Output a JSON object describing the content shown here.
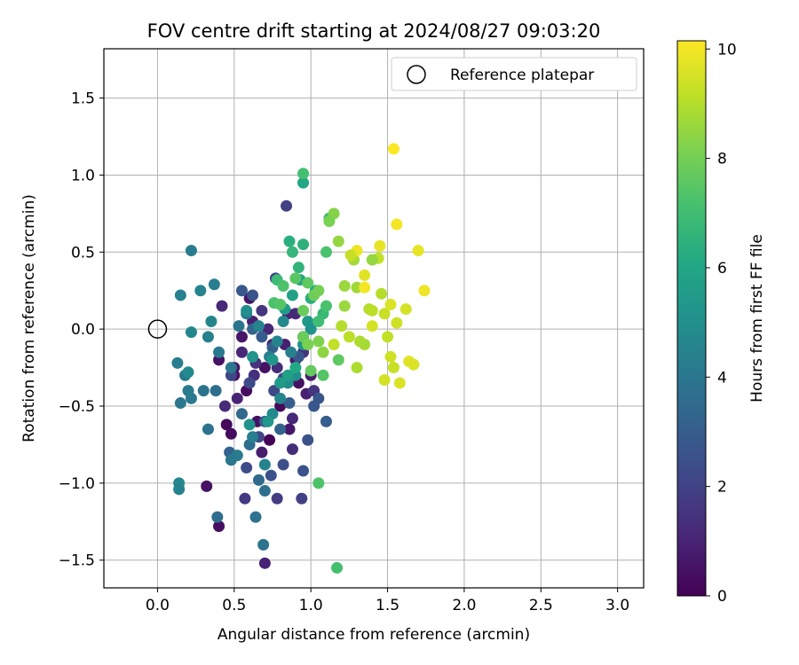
{
  "chart_data": {
    "type": "scatter",
    "title": "FOV centre drift starting at 2024/08/27 09:03:20",
    "xlabel": "Angular distance from reference (arcmin)",
    "ylabel": "Rotation from reference (arcmin)",
    "xlim": [
      -0.35,
      3.17
    ],
    "ylim": [
      -1.68,
      1.82
    ],
    "xticks": [
      "0.0",
      "0.5",
      "1.0",
      "1.5",
      "2.0",
      "2.5",
      "3.0"
    ],
    "yticks": [
      "1.5",
      "1.0",
      "0.5",
      "0.0",
      "−0.5",
      "−1.0",
      "−1.5"
    ],
    "xtick_values": [
      0,
      0.5,
      1.0,
      1.5,
      2.0,
      2.5,
      3.0
    ],
    "ytick_values": [
      1.5,
      1.0,
      0.5,
      0.0,
      -0.5,
      -1.0,
      -1.5
    ],
    "grid": true,
    "legend": {
      "placement": "top-right",
      "entries": [
        "Reference platepar"
      ]
    },
    "colorbar": {
      "label": "Hours from first FF file",
      "range": [
        0,
        10.15
      ],
      "ticks": [
        "0",
        "2",
        "4",
        "6",
        "8",
        "10"
      ],
      "tick_values": [
        0,
        2,
        4,
        6,
        8,
        10
      ],
      "colormap": "viridis"
    },
    "reference_point": {
      "x": 0.0,
      "y": 0.0,
      "label": "Reference platepar"
    },
    "points": [
      [
        0.5,
        -0.3,
        0.4
      ],
      [
        0.55,
        -0.05,
        0.6
      ],
      [
        0.58,
        -0.4,
        0.3
      ],
      [
        0.62,
        0.05,
        0.9
      ],
      [
        0.7,
        -0.25,
        0.5
      ],
      [
        0.75,
        -0.1,
        0.8
      ],
      [
        0.8,
        -0.5,
        0.2
      ],
      [
        0.85,
        0.1,
        1.0
      ],
      [
        0.9,
        -0.2,
        0.7
      ],
      [
        0.95,
        -0.05,
        0.3
      ],
      [
        0.97,
        -0.42,
        0.9
      ],
      [
        0.65,
        -0.6,
        0.4
      ],
      [
        0.45,
        -0.62,
        0.2
      ],
      [
        0.48,
        -0.68,
        0.3
      ],
      [
        0.4,
        -0.2,
        0.5
      ],
      [
        0.42,
        0.15,
        1.2
      ],
      [
        0.6,
        0.2,
        0.6
      ],
      [
        0.68,
        -0.8,
        0.8
      ],
      [
        0.73,
        -0.72,
        0.1
      ],
      [
        0.86,
        -0.65,
        0.6
      ],
      [
        0.32,
        -1.02,
        0.5
      ],
      [
        0.4,
        -1.28,
        0.4
      ],
      [
        0.7,
        -1.52,
        1.0
      ],
      [
        0.88,
        -0.58,
        1.1
      ],
      [
        0.92,
        -0.35,
        0.4
      ],
      [
        1.0,
        -0.3,
        0.8
      ],
      [
        0.55,
        -0.15,
        1.1
      ],
      [
        0.78,
        -0.25,
        1.3
      ],
      [
        0.83,
        -0.1,
        0.9
      ],
      [
        0.6,
        -0.35,
        0.7
      ],
      [
        0.52,
        -0.45,
        1.0
      ],
      [
        0.44,
        -0.5,
        1.2
      ],
      [
        0.5,
        -0.25,
        0.6
      ],
      [
        0.63,
        -0.3,
        1.4
      ],
      [
        0.72,
        0.0,
        1.1
      ],
      [
        0.9,
        0.1,
        1.2
      ],
      [
        0.95,
        -0.15,
        1.5
      ],
      [
        1.02,
        -0.4,
        1.6
      ],
      [
        0.88,
        -0.78,
        1.3
      ],
      [
        0.57,
        -1.1,
        1.7
      ],
      [
        0.78,
        -1.1,
        1.8
      ],
      [
        0.94,
        -1.1,
        1.9
      ],
      [
        0.84,
        0.8,
        1.9
      ],
      [
        0.68,
        0.12,
        1.6
      ],
      [
        0.64,
        -0.22,
        1.5
      ],
      [
        0.77,
        0.33,
        2.0
      ],
      [
        0.76,
        -0.4,
        2.2
      ],
      [
        0.82,
        -0.32,
        2.4
      ],
      [
        0.58,
        -0.9,
        2.3
      ],
      [
        0.66,
        -0.7,
        2.1
      ],
      [
        0.74,
        -0.95,
        2.5
      ],
      [
        0.82,
        -0.88,
        2.4
      ],
      [
        0.95,
        -0.92,
        2.6
      ],
      [
        0.98,
        -0.72,
        2.5
      ],
      [
        1.02,
        -0.5,
        2.8
      ],
      [
        1.05,
        -0.45,
        2.7
      ],
      [
        1.1,
        -0.6,
        3.0
      ],
      [
        0.6,
        -0.35,
        2.3
      ],
      [
        0.55,
        0.25,
        2.8
      ],
      [
        0.62,
        0.22,
        2.6
      ],
      [
        0.48,
        -0.3,
        2.2
      ],
      [
        0.7,
        -0.6,
        2.9
      ],
      [
        0.8,
        -0.65,
        3.2
      ],
      [
        0.86,
        -0.48,
        3.0
      ],
      [
        0.92,
        -0.18,
        2.7
      ],
      [
        0.68,
        -0.05,
        2.9
      ],
      [
        0.75,
        -0.12,
        3.1
      ],
      [
        0.62,
        0.0,
        3.3
      ],
      [
        0.55,
        -0.55,
        3.4
      ],
      [
        0.47,
        -0.8,
        3.2
      ],
      [
        0.6,
        -0.75,
        3.6
      ],
      [
        0.66,
        -0.98,
        3.5
      ],
      [
        0.64,
        -1.22,
        3.8
      ],
      [
        0.7,
        -1.05,
        3.7
      ],
      [
        0.69,
        -1.4,
        3.9
      ],
      [
        0.39,
        -1.22,
        3.6
      ],
      [
        0.33,
        -0.65,
        3.8
      ],
      [
        0.38,
        -0.4,
        3.7
      ],
      [
        0.3,
        -0.4,
        3.9
      ],
      [
        0.22,
        -0.45,
        4.1
      ],
      [
        0.2,
        -0.4,
        4.2
      ],
      [
        0.15,
        -0.48,
        4.0
      ],
      [
        0.13,
        -0.22,
        4.3
      ],
      [
        0.18,
        -0.3,
        4.1
      ],
      [
        0.15,
        0.22,
        4.4
      ],
      [
        0.22,
        0.51,
        4.2
      ],
      [
        0.28,
        0.25,
        4.5
      ],
      [
        0.37,
        0.29,
        4.3
      ],
      [
        0.35,
        0.05,
        4.6
      ],
      [
        0.33,
        -0.05,
        4.4
      ],
      [
        0.4,
        -0.15,
        4.1
      ],
      [
        0.48,
        -0.25,
        4.0
      ],
      [
        0.53,
        0.02,
        3.9
      ],
      [
        0.58,
        0.1,
        4.2
      ],
      [
        0.66,
        0.02,
        4.5
      ],
      [
        0.73,
        -0.18,
        4.3
      ],
      [
        0.78,
        -0.08,
        4.6
      ],
      [
        0.82,
        0.05,
        4.7
      ],
      [
        0.87,
        -0.15,
        4.4
      ],
      [
        0.52,
        -0.82,
        4.2
      ],
      [
        0.48,
        -0.85,
        4.0
      ],
      [
        0.62,
        -0.7,
        4.3
      ],
      [
        0.7,
        -0.88,
        4.5
      ],
      [
        0.75,
        -0.55,
        4.8
      ],
      [
        0.8,
        -0.45,
        4.6
      ],
      [
        0.85,
        -0.35,
        4.9
      ],
      [
        0.9,
        -0.3,
        5.0
      ],
      [
        0.95,
        -0.1,
        5.2
      ],
      [
        0.98,
        0.05,
        5.4
      ],
      [
        1.0,
        0.0,
        5.1
      ],
      [
        0.14,
        -1.0,
        4.7
      ],
      [
        0.14,
        -1.04,
        4.5
      ],
      [
        0.2,
        -0.28,
        4.8
      ],
      [
        0.22,
        -0.02,
        4.6
      ],
      [
        0.58,
        0.12,
        5.0
      ],
      [
        0.75,
        -0.2,
        5.3
      ],
      [
        0.8,
        -0.35,
        5.5
      ],
      [
        0.62,
        -0.18,
        5.2
      ],
      [
        0.72,
        -0.6,
        5.4
      ],
      [
        0.6,
        -0.62,
        5.1
      ],
      [
        0.83,
        0.13,
        5.6
      ],
      [
        0.88,
        0.22,
        5.8
      ],
      [
        0.93,
        0.32,
        5.9
      ],
      [
        0.85,
        -0.3,
        5.7
      ],
      [
        0.95,
        0.95,
        6.0
      ],
      [
        0.9,
        -0.25,
        6.1
      ],
      [
        1.0,
        0.2,
        6.3
      ],
      [
        0.95,
        0.55,
        6.5
      ],
      [
        0.88,
        0.5,
        6.7
      ],
      [
        0.86,
        0.57,
        6.4
      ],
      [
        0.92,
        0.4,
        6.6
      ],
      [
        1.03,
        0.25,
        6.2
      ],
      [
        1.08,
        0.1,
        6.8
      ],
      [
        1.12,
        0.72,
        7.0
      ],
      [
        1.1,
        0.5,
        7.2
      ],
      [
        0.95,
        1.01,
        7.1
      ],
      [
        0.78,
        0.32,
        6.9
      ],
      [
        0.82,
        0.28,
        7.3
      ],
      [
        0.76,
        0.17,
        7.2
      ],
      [
        0.8,
        0.16,
        7.4
      ],
      [
        0.9,
        0.33,
        7.5
      ],
      [
        0.98,
        0.3,
        7.6
      ],
      [
        1.05,
        0.05,
        7.0
      ],
      [
        1.1,
        0.15,
        7.2
      ],
      [
        1.08,
        -0.3,
        7.4
      ],
      [
        1.05,
        -1.0,
        7.3
      ],
      [
        1.17,
        -1.55,
        7.1
      ],
      [
        1.18,
        -0.2,
        7.6
      ],
      [
        1.0,
        -0.27,
        7.7
      ],
      [
        0.95,
        0.12,
        7.8
      ],
      [
        1.02,
        0.22,
        7.9
      ],
      [
        1.05,
        0.25,
        8.0
      ],
      [
        0.95,
        -0.05,
        7.8
      ],
      [
        0.98,
        -0.1,
        8.1
      ],
      [
        1.05,
        -0.08,
        8.2
      ],
      [
        1.15,
        0.75,
        8.3
      ],
      [
        1.18,
        0.57,
        8.5
      ],
      [
        1.22,
        0.15,
        8.6
      ],
      [
        1.28,
        0.45,
        8.8
      ],
      [
        1.3,
        0.27,
        8.7
      ],
      [
        1.32,
        -0.08,
        8.9
      ],
      [
        1.35,
        -0.1,
        8.8
      ],
      [
        1.38,
        0.13,
        9.0
      ],
      [
        1.4,
        0.12,
        9.1
      ],
      [
        1.44,
        0.46,
        9.2
      ],
      [
        1.46,
        0.23,
        9.0
      ],
      [
        1.48,
        0.1,
        9.3
      ],
      [
        1.5,
        -0.05,
        9.2
      ],
      [
        1.52,
        -0.18,
        9.4
      ],
      [
        1.54,
        -0.25,
        9.3
      ],
      [
        1.48,
        -0.33,
        9.5
      ],
      [
        1.56,
        0.04,
        9.4
      ],
      [
        1.58,
        -0.35,
        9.6
      ],
      [
        1.62,
        0.13,
        9.5
      ],
      [
        1.64,
        -0.21,
        9.7
      ],
      [
        1.67,
        -0.23,
        9.6
      ],
      [
        1.7,
        0.51,
        9.8
      ],
      [
        1.74,
        0.25,
        9.9
      ],
      [
        1.56,
        0.68,
        10.0
      ],
      [
        1.54,
        1.17,
        10.1
      ],
      [
        1.3,
        0.51,
        9.9
      ],
      [
        1.35,
        0.35,
        9.7
      ],
      [
        1.4,
        0.02,
        9.5
      ],
      [
        1.45,
        0.54,
        9.8
      ],
      [
        1.52,
        0.16,
        9.6
      ],
      [
        1.35,
        0.27,
        10.0
      ],
      [
        1.2,
        0.02,
        9.0
      ],
      [
        1.15,
        -0.1,
        9.2
      ],
      [
        1.25,
        -0.05,
        9.1
      ],
      [
        1.08,
        -0.15,
        8.4
      ],
      [
        1.3,
        -0.25,
        8.9
      ],
      [
        1.22,
        0.28,
        8.6
      ],
      [
        1.26,
        0.48,
        9.3
      ],
      [
        1.12,
        0.7,
        8.1
      ],
      [
        1.4,
        0.45,
        8.5
      ]
    ]
  }
}
